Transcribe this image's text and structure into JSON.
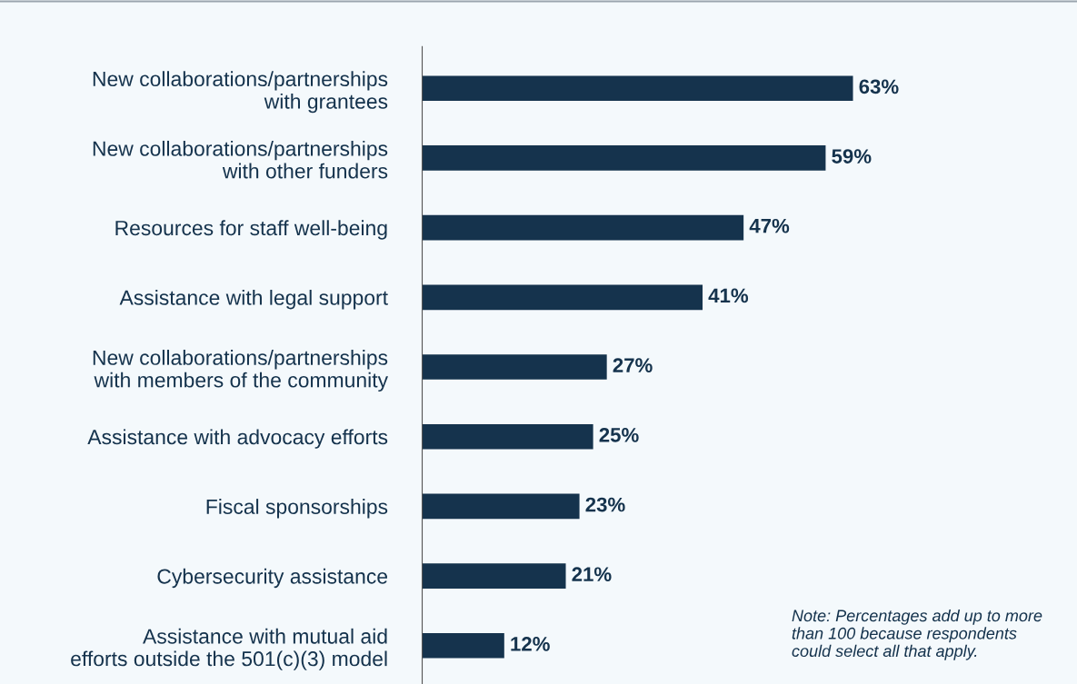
{
  "chart_data": {
    "type": "bar",
    "orientation": "horizontal",
    "categories": [
      "New collaborations/partnerships\nwith grantees",
      "New collaborations/partnerships\nwith other funders",
      "Resources for staff well-being",
      "Assistance with legal support",
      "New collaborations/partnerships\nwith members of the community",
      "Assistance with advocacy efforts",
      "Fiscal sponsorships",
      "Cybersecurity assistance",
      "Assistance with mutual aid\nefforts outside the 501(c)(3) model"
    ],
    "values": [
      63,
      59,
      47,
      41,
      27,
      25,
      23,
      21,
      12
    ],
    "value_labels": [
      "63%",
      "59%",
      "47%",
      "41%",
      "27%",
      "25%",
      "23%",
      "21%",
      "12%"
    ],
    "color": "#15334d",
    "grid": false,
    "legend": false,
    "annotations": [
      "Note: Percentages add up to more\nthan 100 because respondents\ncould select all that apply."
    ]
  }
}
